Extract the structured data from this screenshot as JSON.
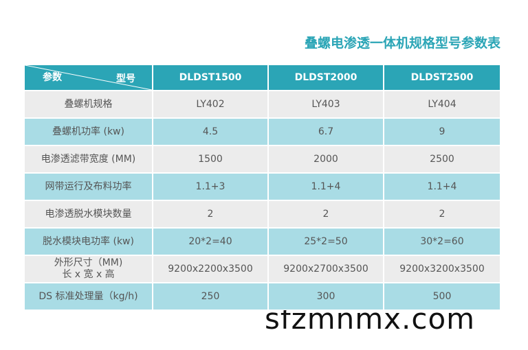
{
  "title": "叠螺电渗透一体机规格型号参数表",
  "table": {
    "header": {
      "param": "参数",
      "model": "型号",
      "columns": [
        "DLDST1500",
        "DLDST2000",
        "DLDST2500"
      ]
    },
    "rows": [
      {
        "label": "叠螺机规格",
        "values": [
          "LY402",
          "LY403",
          "LY404"
        ]
      },
      {
        "label": "叠螺机功率 (kw)",
        "values": [
          "4.5",
          "6.7",
          "9"
        ]
      },
      {
        "label": "电渗透滤带宽度 (MM)",
        "values": [
          "1500",
          "2000",
          "2500"
        ]
      },
      {
        "label": "网带运行及布料功率",
        "values": [
          "1.1+3",
          "1.1+4",
          "1.1+4"
        ]
      },
      {
        "label": "电渗透脱水模块数量",
        "values": [
          "2",
          "2",
          "2"
        ]
      },
      {
        "label": "脱水模块电功率 (kw)",
        "values": [
          "20*2=40",
          "25*2=50",
          "30*2=60"
        ]
      },
      {
        "label": [
          "外形尺寸（MM)",
          "长 x 宽 x 高"
        ],
        "values": [
          "9200x2200x3500",
          "9200x2700x3500",
          "9200x3200x3500"
        ]
      },
      {
        "label": "DS 标准处理量（kg/h)",
        "values": [
          "250",
          "300",
          "500"
        ]
      }
    ]
  },
  "watermark": "sfzmnmx.com"
}
